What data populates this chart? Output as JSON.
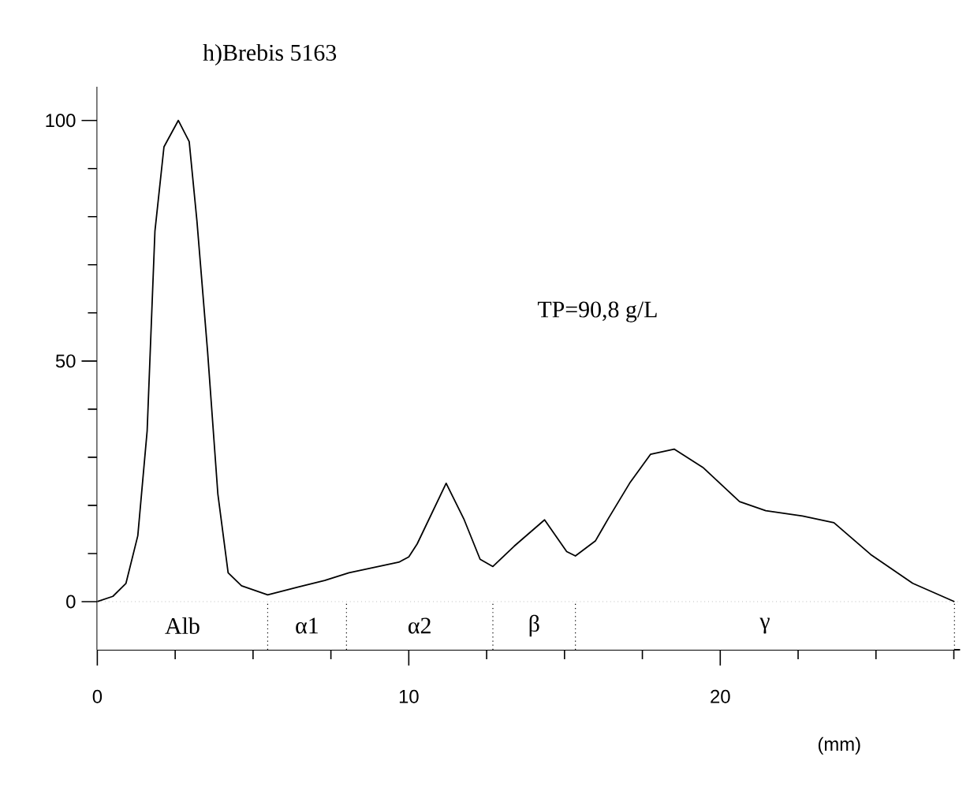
{
  "chart_data": {
    "type": "line",
    "title": "h)Brebis 5163",
    "xlabel": "(mm)",
    "annotations": [
      "TP=90,8 g/L"
    ],
    "x": [
      0,
      0.5,
      0.92,
      1.3,
      1.6,
      1.85,
      2.14,
      2.6,
      2.95,
      3.2,
      3.54,
      3.87,
      4.2,
      4.63,
      5.47,
      6.48,
      7.3,
      8.08,
      9.68,
      10.0,
      10.27,
      11.2,
      11.78,
      12.29,
      12.7,
      13.38,
      14.36,
      15.07,
      15.35,
      15.99,
      16.41,
      17.09,
      17.76,
      18.52,
      19.44,
      20.62,
      21.46,
      22.64,
      23.65,
      24.83,
      26.18,
      27.52
    ],
    "series": [
      {
        "color": "#000000",
        "values": [
          0,
          1.1,
          3.8,
          13.7,
          35.5,
          77,
          94.5,
          100,
          95.6,
          79,
          52,
          22.4,
          6,
          3.3,
          1.4,
          3.1,
          4.4,
          6.0,
          8.2,
          9.3,
          12,
          24.6,
          17,
          8.8,
          7.3,
          11.5,
          17,
          10.4,
          9.5,
          12.6,
          17.3,
          24.6,
          30.6,
          31.7,
          27.9,
          20.8,
          18.9,
          17.8,
          16.4,
          9.8,
          3.8,
          0
        ]
      }
    ],
    "marker": "none",
    "line_style": "solid",
    "xlim": [
      0,
      27.7
    ],
    "ylim": [
      -10,
      107
    ],
    "xticks": [
      0,
      {
        "value": 2.5,
        "label": null
      },
      {
        "value": 5,
        "label": null
      },
      {
        "value": 7.5,
        "label": null
      },
      10,
      {
        "value": 12.5,
        "label": null
      },
      {
        "value": 15,
        "label": null
      },
      {
        "value": 17.5,
        "label": null
      },
      20,
      {
        "value": 22.5,
        "label": null
      },
      {
        "value": 25,
        "label": null
      },
      {
        "value": 27.5,
        "label": null
      }
    ],
    "yticks": [
      0,
      {
        "value": 10,
        "label": null
      },
      {
        "value": 20,
        "label": null
      },
      {
        "value": 30,
        "label": null
      },
      {
        "value": 40,
        "label": null
      },
      50,
      {
        "value": 60,
        "label": null
      },
      {
        "value": 70,
        "label": null
      },
      {
        "value": 80,
        "label": null
      },
      {
        "value": 90,
        "label": null
      },
      100
    ],
    "ref_lines": [
      {
        "axis": "y",
        "value": 0,
        "color": "#999999",
        "line_style": "dotted"
      },
      {
        "axis": "x",
        "value": 5.47,
        "color": "#000000",
        "line_style": "dotted"
      },
      {
        "axis": "x",
        "value": 8.0,
        "color": "#000000",
        "line_style": "dotted"
      },
      {
        "axis": "x",
        "value": 12.7,
        "color": "#000000",
        "line_style": "dotted"
      },
      {
        "axis": "x",
        "value": 15.35,
        "color": "#000000",
        "line_style": "dotted"
      },
      {
        "axis": "x",
        "value": 27.52,
        "color": "#000000",
        "line_style": "dotted"
      }
    ],
    "bands": [
      {
        "axis": "x",
        "from": 0,
        "to": 5.47,
        "label": "Alb",
        "color": "#ffffff"
      },
      {
        "axis": "x",
        "from": 5.47,
        "to": 8.0,
        "label": "α1",
        "color": "#ffffff"
      },
      {
        "axis": "x",
        "from": 8.0,
        "to": 12.7,
        "label": "α2",
        "color": "#ffffff"
      },
      {
        "axis": "x",
        "from": 12.7,
        "to": 15.35,
        "label": "β",
        "color": "#ffffff"
      },
      {
        "axis": "x",
        "from": 15.35,
        "to": 27.52,
        "label": "γ",
        "color": "#ffffff"
      }
    ]
  }
}
